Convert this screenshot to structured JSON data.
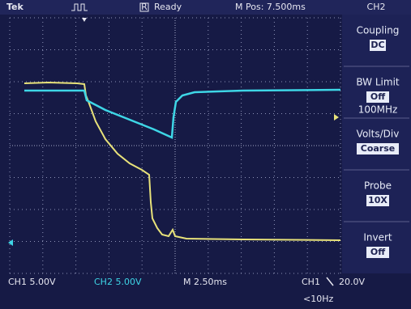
{
  "header": {
    "brand": "Tek",
    "status_icon": "R",
    "status": "Ready",
    "position": "M Pos: 7.500ms",
    "channel": "CH2"
  },
  "menu": [
    {
      "label": "Coupling",
      "value": "DC"
    },
    {
      "label": "BW Limit",
      "value": "Off",
      "extra": "100MHz"
    },
    {
      "label": "Volts/Div",
      "value": "Coarse"
    },
    {
      "label": "Probe",
      "value": "10X"
    },
    {
      "label": "Invert",
      "value": "Off"
    }
  ],
  "footer": {
    "ch1": "CH1 5.00V",
    "ch2": "CH2 5.00V",
    "timebase": "M 2.50ms",
    "trigger_source": "CH1",
    "trigger_level": "20.0V",
    "frequency": "<10Hz"
  }
}
